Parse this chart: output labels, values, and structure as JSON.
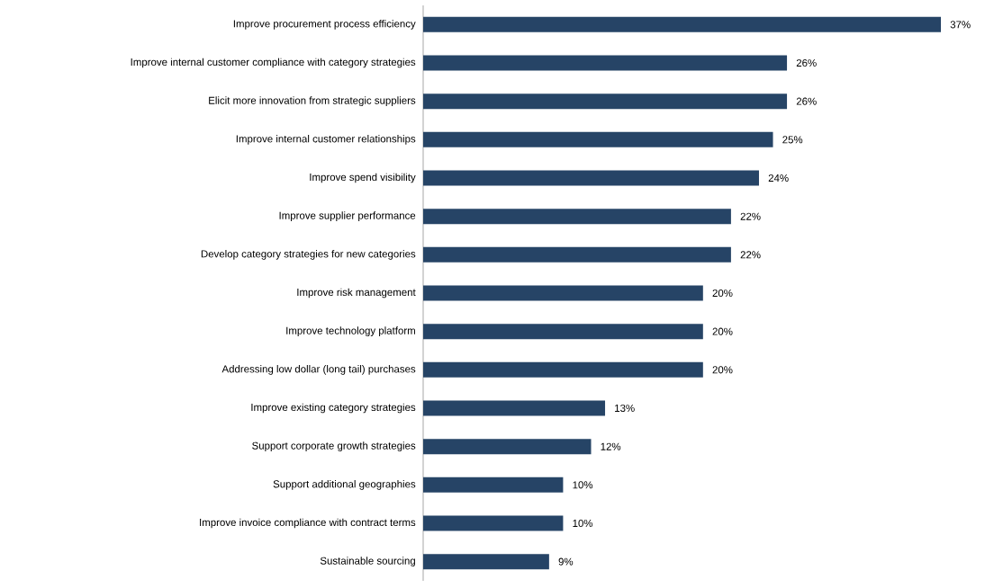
{
  "chart_data": {
    "type": "bar",
    "orientation": "horizontal",
    "color": "#264466",
    "categories": [
      "Improve procurement process efficiency",
      "Improve internal customer compliance with category strategies",
      "Elicit more innovation from strategic suppliers",
      "Improve internal customer relationships",
      "Improve spend visibility",
      "Improve supplier performance",
      "Develop category strategies for new categories",
      "Improve risk management",
      "Improve technology platform",
      "Addressing low dollar (long tail) purchases",
      "Improve existing category strategies",
      "Support corporate growth strategies",
      "Support additional geographies",
      "Improve invoice compliance with contract terms",
      "Sustainable sourcing"
    ],
    "values": [
      37,
      26,
      26,
      25,
      24,
      22,
      22,
      20,
      20,
      20,
      13,
      12,
      10,
      10,
      9
    ],
    "value_labels": [
      "37%",
      "26%",
      "26%",
      "25%",
      "24%",
      "22%",
      "22%",
      "20%",
      "20%",
      "20%",
      "13%",
      "12%",
      "10%",
      "10%",
      "9%"
    ],
    "grid": false
  }
}
